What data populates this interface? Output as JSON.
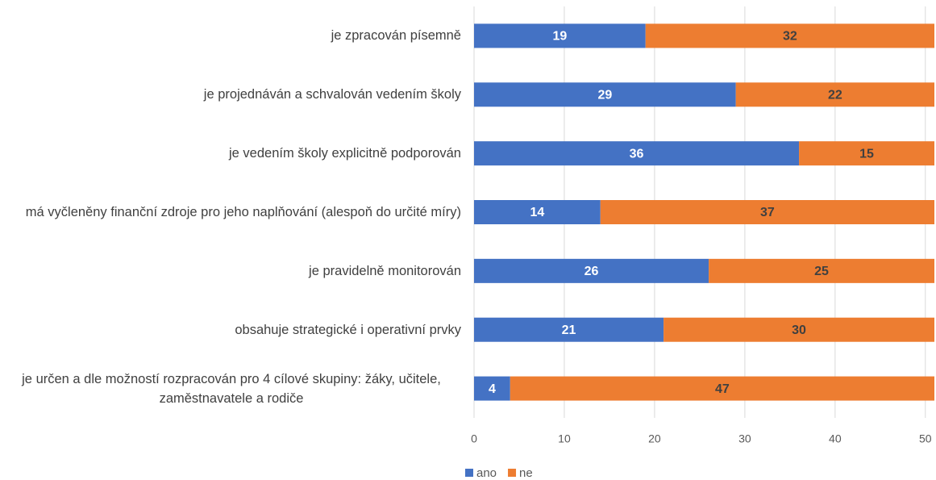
{
  "chart_data": {
    "type": "stacked-barh",
    "categories": [
      "je zpracován písemně",
      "je projednáván a schvalován vedením školy",
      "je vedením školy explicitně podporován",
      "má vyčleněny finanční zdroje pro jeho naplňování (alespoň do určité míry)",
      "je pravidelně monitorován",
      "obsahuje strategické i operativní prvky",
      "je určen a dle možností rozpracován pro 4 cílové skupiny: žáky, učitele, zaměstnavatele a rodiče"
    ],
    "series": [
      {
        "name": "ano",
        "color": "#4472c4",
        "label_color": "#ffffff",
        "values": [
          19,
          29,
          36,
          14,
          26,
          21,
          4
        ]
      },
      {
        "name": "ne",
        "color": "#ed7d31",
        "label_color": "#404040",
        "values": [
          32,
          22,
          15,
          37,
          25,
          30,
          47
        ]
      }
    ],
    "xlim": [
      0,
      51
    ],
    "xticks": [
      0,
      10,
      20,
      30,
      40,
      50
    ],
    "grid": true,
    "legend": "bottom"
  }
}
